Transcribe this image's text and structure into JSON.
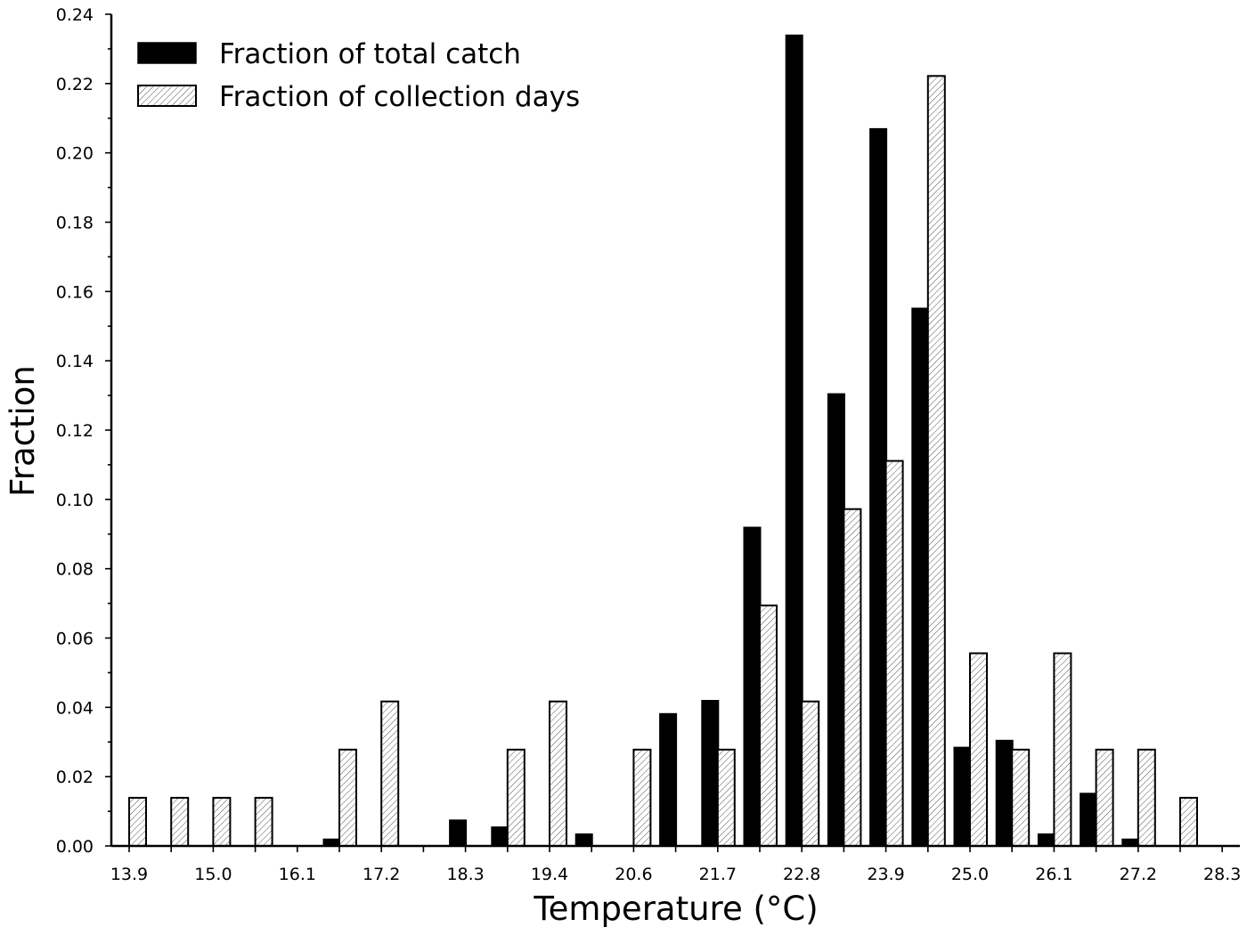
{
  "chart_data": {
    "type": "bar",
    "xlabel": "Temperature (°C)",
    "ylabel": "Fraction",
    "ylim": [
      0,
      0.24
    ],
    "y_ticks": [
      "0.00",
      "0.02",
      "0.04",
      "0.06",
      "0.08",
      "0.10",
      "0.12",
      "0.14",
      "0.16",
      "0.18",
      "0.20",
      "0.22",
      "0.24"
    ],
    "x_tick_labels": [
      "13.9",
      "15.0",
      "16.1",
      "17.2",
      "18.3",
      "19.4",
      "20.6",
      "21.7",
      "22.8",
      "23.9",
      "25.0",
      "26.1",
      "27.2",
      "28.3"
    ],
    "legend_position": "top-left",
    "grid": false,
    "bin_count": 26,
    "series": [
      {
        "name": "Fraction of total catch",
        "fill": "solid",
        "color": "#000000",
        "values": [
          0,
          0,
          0,
          0,
          0,
          0.002,
          0,
          0,
          0.0075,
          0.0055,
          0,
          0.0035,
          0,
          0.0382,
          0.042,
          0.092,
          0.234,
          0.1305,
          0.207,
          0.1552,
          0.0285,
          0.0305,
          0.0035,
          0.0152,
          0.002,
          0
        ]
      },
      {
        "name": "Fraction of collection days",
        "fill": "hatched",
        "color": "#ffffff",
        "values": [
          0.0139,
          0.0139,
          0.0139,
          0.0139,
          0,
          0.0278,
          0.0417,
          0,
          0,
          0.0278,
          0.0417,
          0,
          0.0278,
          0,
          0.0278,
          0.0694,
          0.0417,
          0.0972,
          0.1111,
          0.2222,
          0.0556,
          0.0278,
          0.0556,
          0.0278,
          0.0278,
          0.0139
        ]
      }
    ]
  }
}
